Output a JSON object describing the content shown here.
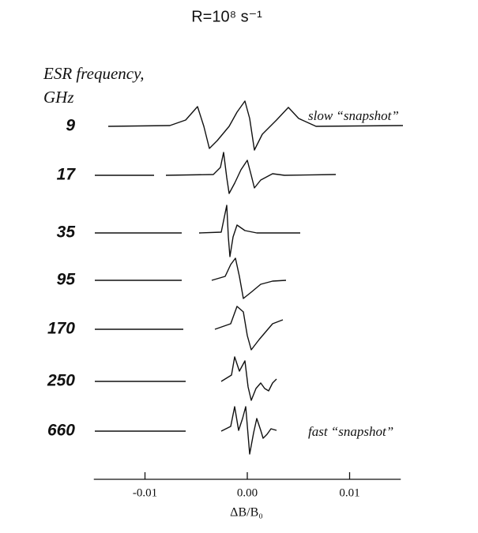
{
  "chart_data": {
    "type": "spectra",
    "title": "R=10⁸ s⁻¹",
    "ylabel": [
      "ESR frequency,",
      "GHz"
    ],
    "categories": [
      "9",
      "17",
      "35",
      "95",
      "170",
      "250",
      "660"
    ],
    "annotations": [
      "slow “snapshot”",
      "fast “snapshot”"
    ],
    "xlabel": "ΔB/B₀",
    "xlim": [
      -0.015,
      0.015
    ],
    "xticks": [
      -0.01,
      {
        "value": 0,
        "label": "0.00"
      },
      0.01
    ]
  }
}
